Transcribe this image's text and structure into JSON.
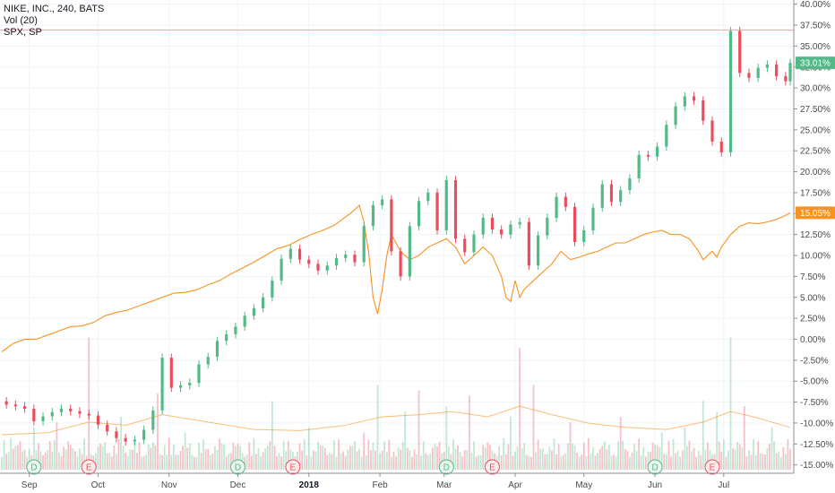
{
  "legend": {
    "symbol": "NIKE, INC., 240, BATS",
    "volume": "Vol (20)",
    "compare": "SPX, SP"
  },
  "colors": {
    "up": "#53b987",
    "down": "#eb4d5c",
    "compare_line": "#f7931e",
    "volume_ma": "#f7931e",
    "grid": "#f0f3fa",
    "axis_line": "#8f8f8f",
    "high_line": "#f3a1a9"
  },
  "badges": {
    "nke_last": "33.01%",
    "spx_last": "15.05%"
  },
  "chart_data": {
    "type": "candlestick",
    "title": "",
    "y_axis": {
      "labels": [
        "40.00%",
        "37.50%",
        "35.00%",
        "32.50%",
        "30.00%",
        "27.50%",
        "25.00%",
        "22.50%",
        "20.00%",
        "17.50%",
        "15.00%",
        "12.50%",
        "10.00%",
        "7.50%",
        "5.00%",
        "2.50%",
        "0.00%",
        "-2.50%",
        "-5.00%",
        "-7.50%",
        "-10.00%",
        "-12.50%",
        "-15.00%"
      ],
      "ylim": [
        -16.0,
        40.5
      ],
      "unit": "%"
    },
    "x_axis": {
      "labels": [
        "Sep",
        "Oct",
        "Nov",
        "Dec",
        "2018",
        "Feb",
        "Mar",
        "Apr",
        "May",
        "Jun",
        "Jul"
      ],
      "label_days": [
        12,
        42,
        73,
        103,
        134,
        165,
        193,
        224,
        254,
        285,
        315
      ],
      "range_days": [
        0,
        344
      ]
    },
    "series": [
      {
        "name": "NIKE, INC., 240, BATS",
        "style": "candles",
        "points": [
          [
            2,
            -7.8
          ],
          [
            6,
            -8
          ],
          [
            10,
            -8.3
          ],
          [
            14,
            -9.8
          ],
          [
            18,
            -9.2
          ],
          [
            22,
            -8.7
          ],
          [
            26,
            -8.3
          ],
          [
            30,
            -8.6
          ],
          [
            34,
            -8.9
          ],
          [
            38,
            -9.1
          ],
          [
            42,
            -10.2
          ],
          [
            46,
            -11
          ],
          [
            50,
            -11.8
          ],
          [
            54,
            -12.2
          ],
          [
            58,
            -12
          ],
          [
            62,
            -10.8
          ],
          [
            66,
            -8.5
          ],
          [
            70,
            -2.2
          ],
          [
            74,
            -5.8
          ],
          [
            78,
            -5.5
          ],
          [
            82,
            -5.2
          ],
          [
            86,
            -3
          ],
          [
            90,
            -2.1
          ],
          [
            94,
            -0.2
          ],
          [
            98,
            0.6
          ],
          [
            102,
            1.5
          ],
          [
            106,
            2.8
          ],
          [
            110,
            3.7
          ],
          [
            114,
            5
          ],
          [
            118,
            7
          ],
          [
            122,
            9.6
          ],
          [
            126,
            10.8
          ],
          [
            130,
            9.5
          ],
          [
            134,
            9
          ],
          [
            138,
            8.2
          ],
          [
            142,
            8.8
          ],
          [
            146,
            9.7
          ],
          [
            150,
            10.1
          ],
          [
            154,
            9.2
          ],
          [
            158,
            13.5
          ],
          [
            162,
            16
          ],
          [
            166,
            16.7
          ],
          [
            170,
            10.5
          ],
          [
            174,
            7.5
          ],
          [
            178,
            13.5
          ],
          [
            182,
            16.5
          ],
          [
            186,
            17.5
          ],
          [
            190,
            13
          ],
          [
            194,
            19
          ],
          [
            198,
            12
          ],
          [
            202,
            10.4
          ],
          [
            206,
            12.5
          ],
          [
            210,
            14.5
          ],
          [
            214,
            13.1
          ],
          [
            218,
            12.5
          ],
          [
            222,
            13.7
          ],
          [
            226,
            14
          ],
          [
            230,
            8.8
          ],
          [
            234,
            12.4
          ],
          [
            238,
            14.5
          ],
          [
            242,
            17
          ],
          [
            246,
            15.8
          ],
          [
            250,
            11.6
          ],
          [
            254,
            13
          ],
          [
            258,
            15.7
          ],
          [
            262,
            18.5
          ],
          [
            266,
            16.4
          ],
          [
            270,
            17.8
          ],
          [
            274,
            19.2
          ],
          [
            278,
            22
          ],
          [
            282,
            21.8
          ],
          [
            286,
            23
          ],
          [
            290,
            25.6
          ],
          [
            294,
            27.8
          ],
          [
            298,
            29
          ],
          [
            302,
            28.5
          ],
          [
            306,
            26.1
          ],
          [
            310,
            23.6
          ],
          [
            314,
            22.3
          ],
          [
            318,
            36.8
          ],
          [
            322,
            31.8
          ],
          [
            326,
            31.2
          ],
          [
            330,
            32.4
          ],
          [
            334,
            32.8
          ],
          [
            338,
            31.4
          ],
          [
            342,
            30.8
          ],
          [
            344,
            33
          ]
        ]
      },
      {
        "name": "SPX, SP",
        "style": "line",
        "points": [
          [
            0,
            -1.5
          ],
          [
            5,
            -0.5
          ],
          [
            10,
            0
          ],
          [
            15,
            0
          ],
          [
            20,
            0.5
          ],
          [
            25,
            1
          ],
          [
            30,
            1.5
          ],
          [
            35,
            1.6
          ],
          [
            40,
            2
          ],
          [
            45,
            2.8
          ],
          [
            50,
            3.2
          ],
          [
            55,
            3.5
          ],
          [
            60,
            4
          ],
          [
            65,
            4.5
          ],
          [
            70,
            5
          ],
          [
            75,
            5.5
          ],
          [
            80,
            5.6
          ],
          [
            85,
            5.9
          ],
          [
            90,
            6.5
          ],
          [
            95,
            7
          ],
          [
            100,
            7.8
          ],
          [
            105,
            8.5
          ],
          [
            110,
            9.2
          ],
          [
            115,
            10
          ],
          [
            120,
            10.8
          ],
          [
            125,
            11.2
          ],
          [
            130,
            11.9
          ],
          [
            135,
            12.5
          ],
          [
            140,
            13
          ],
          [
            145,
            13.6
          ],
          [
            148,
            14.2
          ],
          [
            152,
            15
          ],
          [
            156,
            16
          ],
          [
            158,
            14
          ],
          [
            160,
            10.5
          ],
          [
            162,
            5
          ],
          [
            164,
            3
          ],
          [
            166,
            6
          ],
          [
            168,
            10
          ],
          [
            170,
            12.5
          ],
          [
            174,
            10.5
          ],
          [
            178,
            9.5
          ],
          [
            182,
            10
          ],
          [
            186,
            11
          ],
          [
            190,
            11.5
          ],
          [
            194,
            12
          ],
          [
            198,
            11
          ],
          [
            202,
            9
          ],
          [
            206,
            10
          ],
          [
            210,
            11
          ],
          [
            214,
            10
          ],
          [
            218,
            7.5
          ],
          [
            220,
            5
          ],
          [
            222,
            4.5
          ],
          [
            224,
            7
          ],
          [
            226,
            5
          ],
          [
            228,
            6
          ],
          [
            232,
            7
          ],
          [
            236,
            8
          ],
          [
            240,
            9
          ],
          [
            244,
            10.5
          ],
          [
            248,
            9.5
          ],
          [
            252,
            9.8
          ],
          [
            256,
            10.2
          ],
          [
            260,
            10.5
          ],
          [
            264,
            11
          ],
          [
            268,
            11.5
          ],
          [
            272,
            11.5
          ],
          [
            276,
            12
          ],
          [
            280,
            12.5
          ],
          [
            284,
            12.8
          ],
          [
            288,
            13
          ],
          [
            292,
            12.5
          ],
          [
            296,
            12.5
          ],
          [
            300,
            12
          ],
          [
            304,
            10.5
          ],
          [
            306,
            9.5
          ],
          [
            310,
            10.5
          ],
          [
            312,
            9.8
          ],
          [
            314,
            11
          ],
          [
            318,
            12.5
          ],
          [
            322,
            13.5
          ],
          [
            326,
            13.9
          ],
          [
            330,
            13.8
          ],
          [
            334,
            14
          ],
          [
            338,
            14.3
          ],
          [
            342,
            14.8
          ],
          [
            344,
            15.1
          ]
        ]
      }
    ],
    "volume": {
      "name": "Vol (20)",
      "bars": [
        [
          4,
          0.3
        ],
        [
          14,
          0.4
        ],
        [
          24,
          0.45
        ],
        [
          38,
          1.25
        ],
        [
          52,
          0.5
        ],
        [
          68,
          0.72
        ],
        [
          80,
          0.35
        ],
        [
          96,
          0.25
        ],
        [
          118,
          0.65
        ],
        [
          134,
          0.4
        ],
        [
          158,
          0.35
        ],
        [
          164,
          0.8
        ],
        [
          176,
          0.55
        ],
        [
          182,
          0.75
        ],
        [
          194,
          0.6
        ],
        [
          204,
          0.7
        ],
        [
          222,
          0.5
        ],
        [
          226,
          1.15
        ],
        [
          232,
          0.8
        ],
        [
          248,
          0.45
        ],
        [
          270,
          0.5
        ],
        [
          288,
          0.35
        ],
        [
          298,
          0.4
        ],
        [
          306,
          0.65
        ],
        [
          312,
          0.55
        ],
        [
          318,
          1.25
        ],
        [
          324,
          0.6
        ],
        [
          336,
          0.4
        ]
      ],
      "ma": [
        [
          0,
          0.33
        ],
        [
          20,
          0.35
        ],
        [
          38,
          0.45
        ],
        [
          54,
          0.42
        ],
        [
          70,
          0.52
        ],
        [
          90,
          0.45
        ],
        [
          110,
          0.38
        ],
        [
          130,
          0.37
        ],
        [
          150,
          0.42
        ],
        [
          166,
          0.5
        ],
        [
          182,
          0.52
        ],
        [
          196,
          0.55
        ],
        [
          212,
          0.5
        ],
        [
          226,
          0.6
        ],
        [
          240,
          0.52
        ],
        [
          256,
          0.44
        ],
        [
          272,
          0.4
        ],
        [
          290,
          0.38
        ],
        [
          306,
          0.45
        ],
        [
          318,
          0.55
        ],
        [
          328,
          0.5
        ],
        [
          344,
          0.4
        ]
      ]
    },
    "events": [
      {
        "label": "D",
        "day": 14,
        "kind": "dividend"
      },
      {
        "label": "E",
        "day": 38,
        "kind": "earnings"
      },
      {
        "label": "D",
        "day": 103,
        "kind": "dividend"
      },
      {
        "label": "E",
        "day": 127,
        "kind": "earnings"
      },
      {
        "label": "D",
        "day": 194,
        "kind": "dividend"
      },
      {
        "label": "E",
        "day": 214,
        "kind": "earnings"
      },
      {
        "label": "D",
        "day": 285,
        "kind": "dividend"
      },
      {
        "label": "E",
        "day": 310,
        "kind": "earnings"
      }
    ],
    "reference_lines": [
      {
        "value": 36.9,
        "color": "#f3a1a9"
      }
    ],
    "grid": true,
    "legend_position": "top-left"
  }
}
